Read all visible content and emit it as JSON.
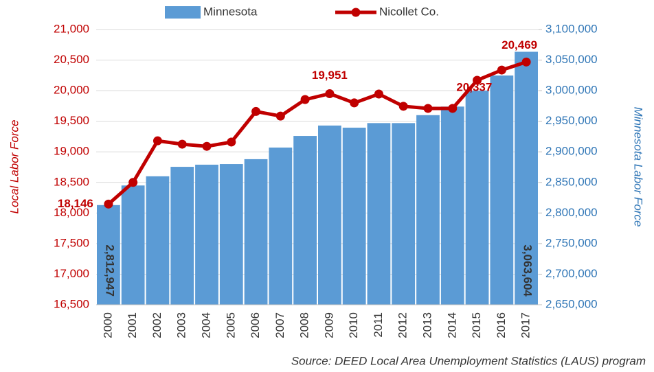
{
  "chart_data": {
    "type": "combo",
    "categories": [
      "2000",
      "2001",
      "2002",
      "2003",
      "2004",
      "2005",
      "2006",
      "2007",
      "2008",
      "2009",
      "2010",
      "2011",
      "2012",
      "2013",
      "2014",
      "2015",
      "2016",
      "2017"
    ],
    "series": [
      {
        "name": "Minnesota",
        "type": "bar",
        "axis": "y2",
        "color": "#5b9bd5",
        "values": [
          2812947,
          2845000,
          2860000,
          2875500,
          2879000,
          2880000,
          2888000,
          2907000,
          2926000,
          2943000,
          2939500,
          2947000,
          2947000,
          2960000,
          2974000,
          3000000,
          3024800,
          3063604
        ],
        "value_labels": [
          "2,812,947",
          null,
          null,
          null,
          null,
          null,
          null,
          null,
          null,
          null,
          null,
          null,
          null,
          null,
          null,
          null,
          null,
          "3,063,604"
        ]
      },
      {
        "name": "Nicollet Co.",
        "type": "line",
        "axis": "y",
        "color": "#c00000",
        "values": [
          18146,
          18500,
          19180,
          19125,
          19090,
          19160,
          19660,
          19585,
          19855,
          19951,
          19800,
          19945,
          19745,
          19710,
          19710,
          20170,
          20337,
          20469
        ],
        "value_labels": [
          "18,146",
          null,
          null,
          null,
          null,
          null,
          null,
          null,
          null,
          "19,951",
          null,
          null,
          null,
          null,
          null,
          null,
          "20,337",
          "20,469"
        ]
      }
    ],
    "ylabel": "Local Labor Force",
    "y2label": "Minnesota Labor Force",
    "ylim": [
      16500,
      21000
    ],
    "yticks": [
      {
        "value": 16500,
        "label": "16,500"
      },
      {
        "value": 17000,
        "label": "17,000"
      },
      {
        "value": 17500,
        "label": "17,500"
      },
      {
        "value": 18000,
        "label": "18,000"
      },
      {
        "value": 18500,
        "label": "18,500"
      },
      {
        "value": 19000,
        "label": "19,000"
      },
      {
        "value": 19500,
        "label": "19,500"
      },
      {
        "value": 20000,
        "label": "20,000"
      },
      {
        "value": 20500,
        "label": "20,500"
      },
      {
        "value": 21000,
        "label": "21,000"
      }
    ],
    "y2lim": [
      2650000,
      3100000
    ],
    "y2ticks": [
      {
        "value": 2650000,
        "label": "2,650,000"
      },
      {
        "value": 2700000,
        "label": "2,700,000"
      },
      {
        "value": 2750000,
        "label": "2,750,000"
      },
      {
        "value": 2800000,
        "label": "2,800,000"
      },
      {
        "value": 2850000,
        "label": "2,850,000"
      },
      {
        "value": 2900000,
        "label": "2,900,000"
      },
      {
        "value": 2950000,
        "label": "2,950,000"
      },
      {
        "value": 3000000,
        "label": "3,000,000"
      },
      {
        "value": 3050000,
        "label": "3,050,000"
      },
      {
        "value": 3100000,
        "label": "3,100,000"
      }
    ],
    "grid": true,
    "legend": "top",
    "source": "Source: DEED Local Area Unemployment Statistics (LAUS) program"
  }
}
